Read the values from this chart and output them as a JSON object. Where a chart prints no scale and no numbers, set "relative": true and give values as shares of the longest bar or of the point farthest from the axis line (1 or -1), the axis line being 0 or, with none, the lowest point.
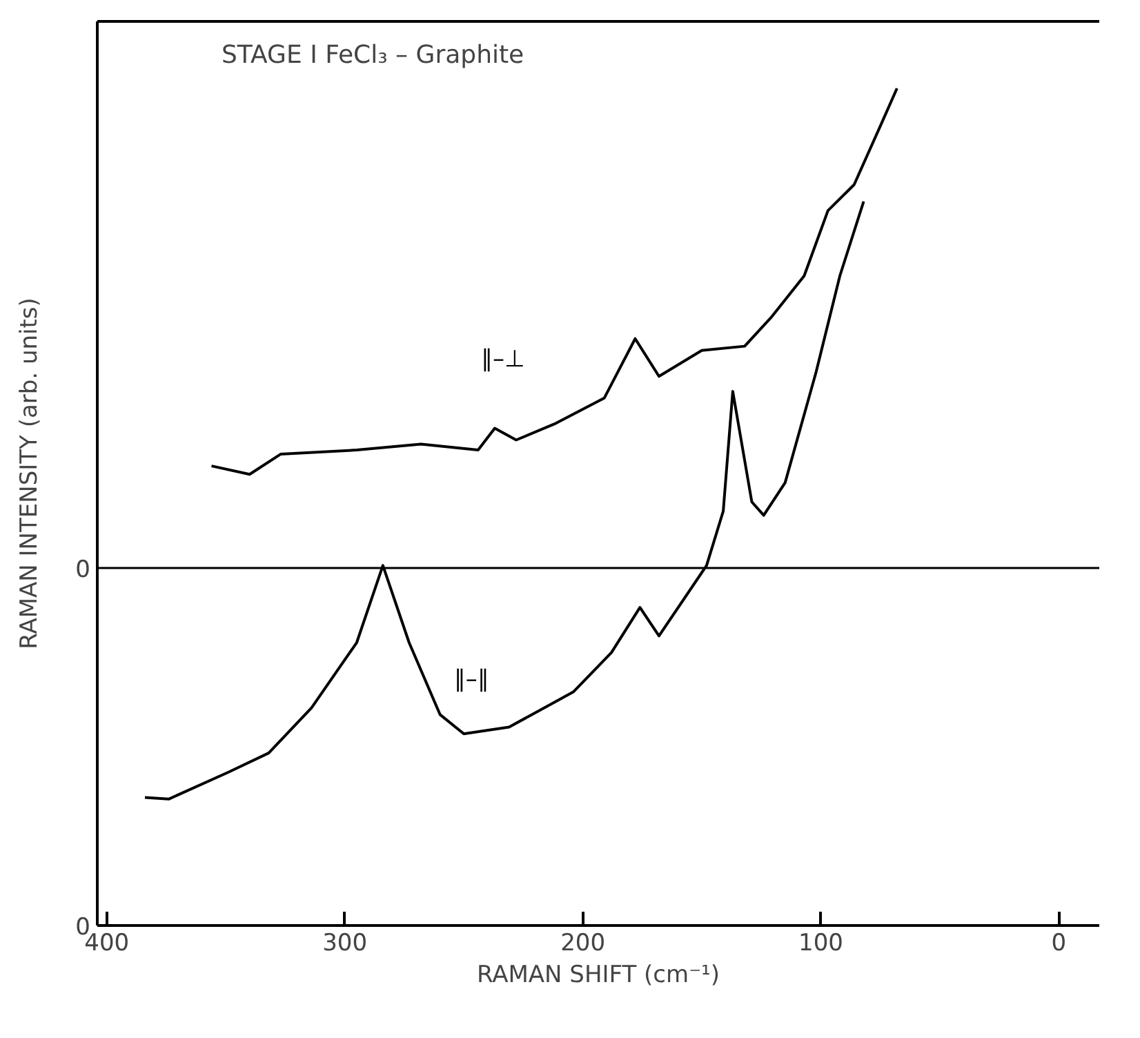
{
  "chart_data": {
    "type": "line",
    "title": "STAGE I  FeCl₃ – Graphite",
    "xlabel": "RAMAN SHIFT (cm⁻¹)",
    "ylabel": "RAMAN INTENSITY (arb. units)",
    "relative": true,
    "xlim": [
      404,
      -17
    ],
    "xticks": [
      400,
      300,
      200,
      100,
      0
    ],
    "grid": false,
    "series": [
      {
        "name": "∥–⊥",
        "color": "#000000",
        "x": [
          356,
          340,
          327,
          295,
          268,
          244,
          237,
          228,
          212,
          191,
          178,
          168,
          150,
          132,
          121,
          107,
          97,
          86,
          75,
          68
        ],
        "values": [
          0.549,
          0.539,
          0.563,
          0.568,
          0.575,
          0.568,
          0.594,
          0.58,
          0.599,
          0.63,
          0.701,
          0.656,
          0.687,
          0.692,
          0.726,
          0.776,
          0.854,
          0.885,
          0.955,
          1.0
        ]
      },
      {
        "name": "∥–∥",
        "color": "#000000",
        "x": [
          384,
          374,
          349,
          332,
          314,
          295,
          284,
          273,
          260,
          250,
          231,
          204,
          188,
          176,
          168,
          148,
          141,
          137,
          129,
          124,
          115,
          102,
          92,
          82
        ],
        "values": [
          0.153,
          0.151,
          0.183,
          0.206,
          0.26,
          0.338,
          0.43,
          0.338,
          0.252,
          0.229,
          0.237,
          0.279,
          0.326,
          0.38,
          0.346,
          0.43,
          0.495,
          0.638,
          0.506,
          0.49,
          0.529,
          0.661,
          0.776,
          0.865
        ]
      }
    ],
    "ref_lines": [
      {
        "axis": "y",
        "value": 0.427,
        "label": "0",
        "color": "#000000"
      }
    ],
    "annotations": [
      "0"
    ]
  }
}
